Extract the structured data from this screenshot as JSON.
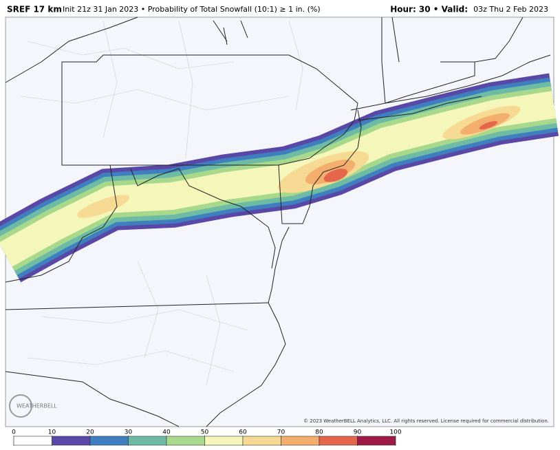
{
  "header": {
    "model": "SREF 17 km",
    "product": "Init 21z 31 Jan 2023 • Probability of Total Snowfall (10:1) ≥ 1 in. (%)",
    "hour_valid": "Hour: 30 • Valid:",
    "valid_time": "03z Thu 2 Feb 2023"
  },
  "logo": "WEATHERBELL",
  "copyright": "© 2023 WeatherBELL Analytics, LLC. All rights reserved. License required for commercial distribution.",
  "colorbar": {
    "ticks": [
      0,
      10,
      20,
      30,
      40,
      50,
      60,
      70,
      80,
      90,
      100
    ],
    "colors": [
      "#ffffff",
      "#5a48a6",
      "#3f7fbf",
      "#6dbba5",
      "#a8d88b",
      "#f4f7b9",
      "#f6d993",
      "#f3ad6c",
      "#e5674b",
      "#9f1b47"
    ]
  }
}
